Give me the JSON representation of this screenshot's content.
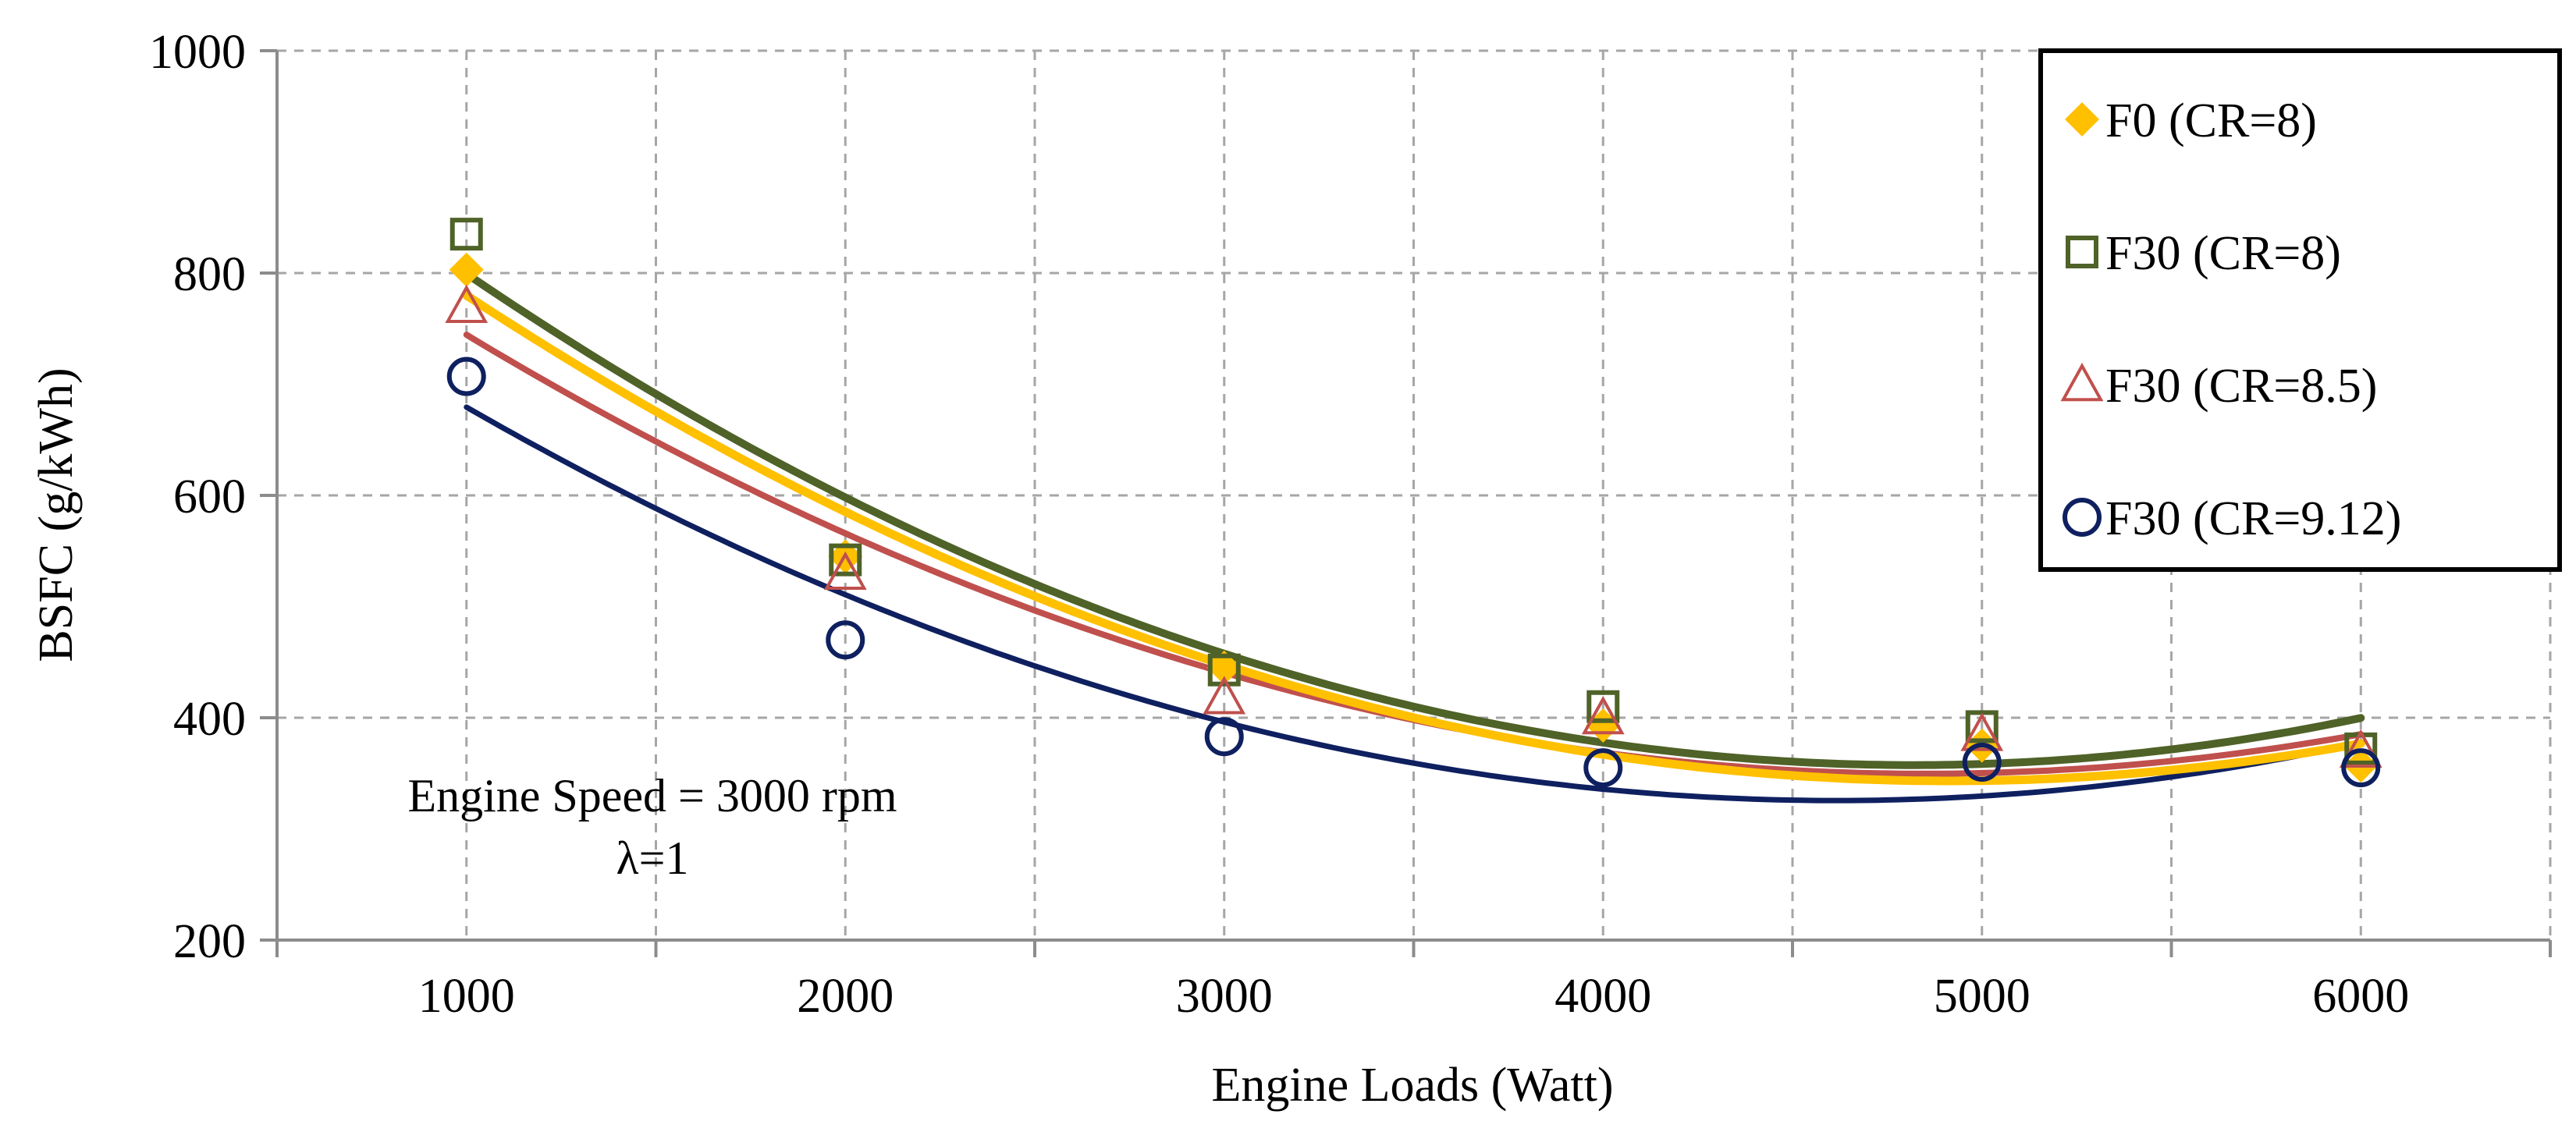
{
  "chart_data": {
    "type": "scatter",
    "title": "",
    "xlabel": "Engine Loads (Watt)",
    "ylabel": "BSFC (g/kWh)",
    "xlim": [
      500,
      6500
    ],
    "ylim": [
      200,
      1000
    ],
    "x_ticks": [
      1000,
      2000,
      3000,
      4000,
      5000,
      6000
    ],
    "x_tick_labels": [
      "1000",
      "2000",
      "3000",
      "4000",
      "5000",
      "6000"
    ],
    "y_ticks": [
      200,
      400,
      600,
      800,
      1000
    ],
    "y_tick_labels": [
      "200",
      "400",
      "600",
      "800",
      "1000"
    ],
    "x_minor_gridlines": [
      1500,
      2500,
      3500,
      4500,
      5500
    ],
    "y_minor_gridlines": [
      300,
      500,
      700,
      900
    ],
    "grid": true,
    "legend_position": "top-right",
    "trendline": "polynomial (order 2)",
    "annotations": [
      "Engine Speed = 3000 rpm",
      "λ=1"
    ],
    "series": [
      {
        "name": "F0 (CR=8)",
        "marker": "diamond",
        "color": "#FFC000",
        "x": [
          1000,
          2000,
          3000,
          4000,
          5000,
          6000
        ],
        "values": [
          803,
          545,
          445,
          393,
          375,
          357
        ],
        "fit_values": [
          780,
          585,
          448,
          367,
          343,
          377
        ]
      },
      {
        "name": "F30 (CR=8)",
        "marker": "square",
        "color": "#4F6228",
        "x": [
          1000,
          2000,
          3000,
          4000,
          5000,
          6000
        ],
        "values": [
          835,
          542,
          443,
          410,
          392,
          372
        ],
        "fit_values": [
          800,
          597,
          457,
          380,
          357,
          400
        ]
      },
      {
        "name": "F30 (CR=8.5)",
        "marker": "triangle",
        "color": "#C0504D",
        "x": [
          1000,
          2000,
          3000,
          4000,
          5000,
          6000
        ],
        "values": [
          770,
          530,
          418,
          400,
          385,
          370
        ],
        "fit_values": [
          745,
          565,
          440,
          370,
          350,
          385
        ]
      },
      {
        "name": "F30 (CR=9.12)",
        "marker": "circle",
        "color": "#0F2060",
        "x": [
          1000,
          2000,
          3000,
          4000,
          5000,
          6000
        ],
        "values": [
          707,
          470,
          383,
          355,
          360,
          355
        ],
        "fit_values": [
          680,
          510,
          395,
          337,
          330,
          377
        ]
      }
    ]
  }
}
